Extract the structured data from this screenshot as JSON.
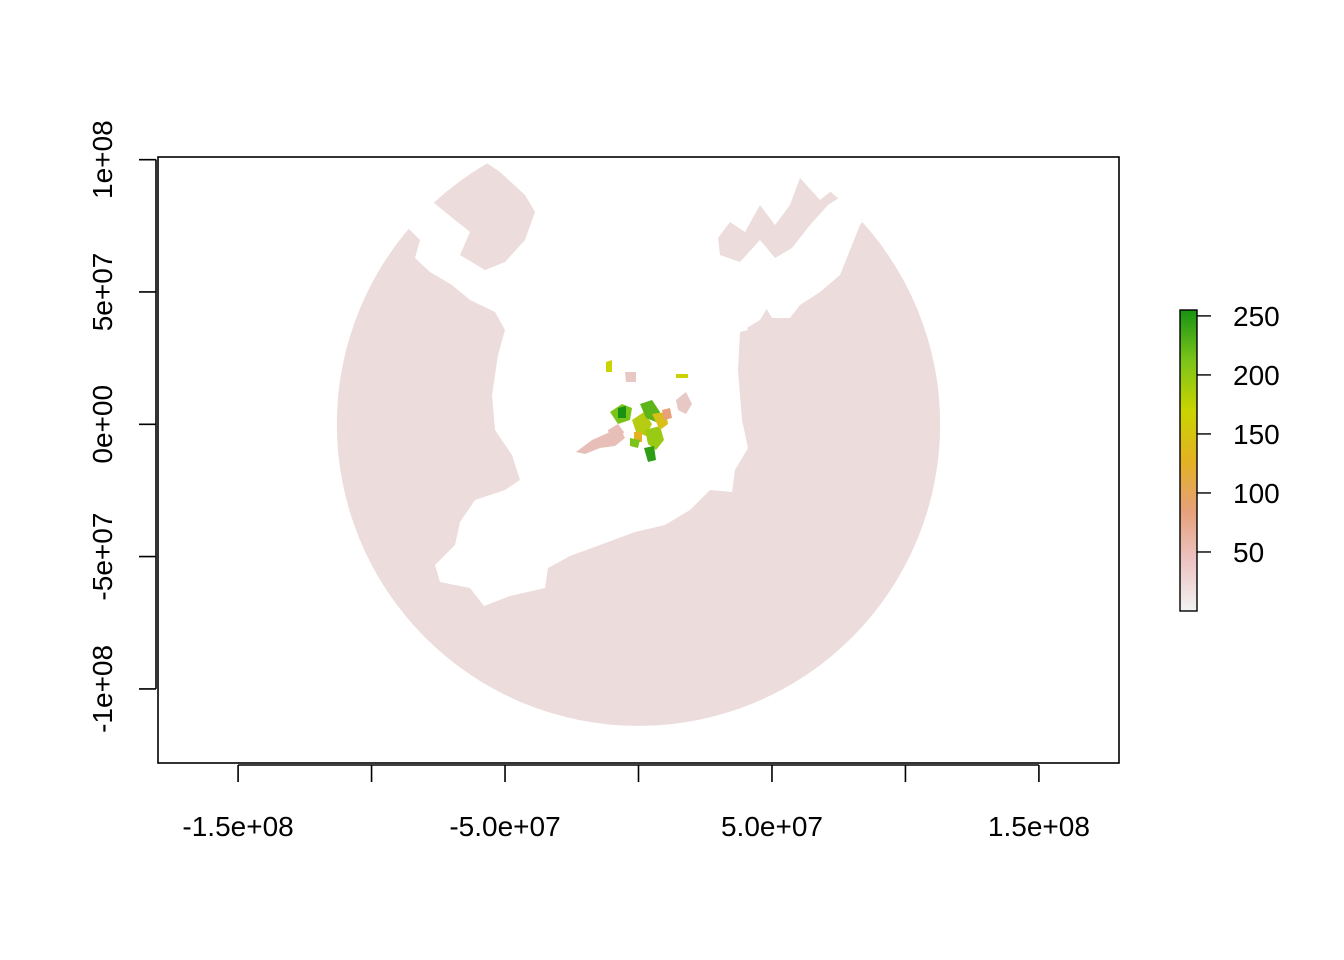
{
  "chart_data": {
    "type": "heatmap",
    "title": "",
    "xlabel": "",
    "ylabel": "",
    "xlim": [
      -180000000,
      180000000
    ],
    "ylim": [
      -128000000,
      101000000
    ],
    "x_ticks": [
      {
        "value": -150000000,
        "label": "-1.5e+08"
      },
      {
        "value": -100000000,
        "label": ""
      },
      {
        "value": -50000000,
        "label": "-5.0e+07"
      },
      {
        "value": 0,
        "label": ""
      },
      {
        "value": 50000000,
        "label": "5.0e+07"
      },
      {
        "value": 100000000,
        "label": ""
      },
      {
        "value": 150000000,
        "label": "1.5e+08"
      }
    ],
    "y_ticks": [
      {
        "value": 100000000,
        "label": "1e+08"
      },
      {
        "value": 50000000,
        "label": "5e+07"
      },
      {
        "value": 0,
        "label": "0e+00"
      },
      {
        "value": -50000000,
        "label": "-5e+07"
      },
      {
        "value": -100000000,
        "label": "-1e+08"
      }
    ],
    "legend": {
      "placement": "right",
      "range": [
        0,
        255
      ],
      "ticks": [
        {
          "value": 250,
          "label": "250"
        },
        {
          "value": 200,
          "label": "200"
        },
        {
          "value": 150,
          "label": "150"
        },
        {
          "value": 100,
          "label": "100"
        },
        {
          "value": 50,
          "label": "50"
        }
      ],
      "gradient": [
        "#F2F2F2",
        "#EDC4C4",
        "#E6A07A",
        "#E3B222",
        "#C9D400",
        "#7AC41A",
        "#179212"
      ]
    },
    "raster": {
      "background_value_color": "#EDDCDC",
      "disc_center": [
        0,
        0
      ],
      "disc_radius": 113000000
    },
    "grid": false
  }
}
